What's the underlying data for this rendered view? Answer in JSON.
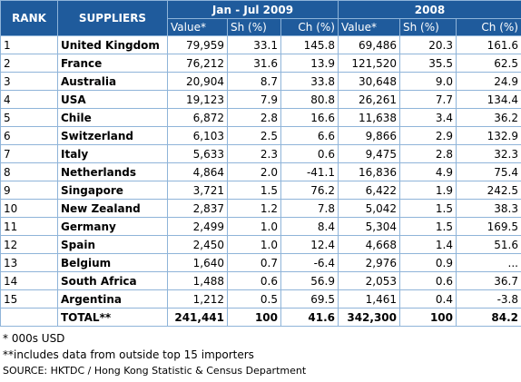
{
  "header": {
    "rank": "RANK",
    "suppliers": "SUPPLIERS",
    "period1": "Jan - Jul 2009",
    "period2": "2008",
    "value": "Value*",
    "share": "Sh (%)",
    "change": "Ch (%)"
  },
  "rows": [
    {
      "rank": "1",
      "name": "United Kingdom",
      "v1": "79,959",
      "s1": "33.1",
      "c1": "145.8",
      "v2": "69,486",
      "s2": "20.3",
      "c2": "161.6"
    },
    {
      "rank": "2",
      "name": "France",
      "v1": "76,212",
      "s1": "31.6",
      "c1": "13.9",
      "v2": "121,520",
      "s2": "35.5",
      "c2": "62.5"
    },
    {
      "rank": "3",
      "name": "Australia",
      "v1": "20,904",
      "s1": "8.7",
      "c1": "33.8",
      "v2": "30,648",
      "s2": "9.0",
      "c2": "24.9"
    },
    {
      "rank": "4",
      "name": "USA",
      "v1": "19,123",
      "s1": "7.9",
      "c1": "80.8",
      "v2": "26,261",
      "s2": "7.7",
      "c2": "134.4"
    },
    {
      "rank": "5",
      "name": "Chile",
      "v1": "6,872",
      "s1": "2.8",
      "c1": "16.6",
      "v2": "11,638",
      "s2": "3.4",
      "c2": "36.2"
    },
    {
      "rank": "6",
      "name": "Switzerland",
      "v1": "6,103",
      "s1": "2.5",
      "c1": "6.6",
      "v2": "9,866",
      "s2": "2.9",
      "c2": "132.9"
    },
    {
      "rank": "7",
      "name": "Italy",
      "v1": "5,633",
      "s1": "2.3",
      "c1": "0.6",
      "v2": "9,475",
      "s2": "2.8",
      "c2": "32.3"
    },
    {
      "rank": "8",
      "name": "Netherlands",
      "v1": "4,864",
      "s1": "2.0",
      "c1": "-41.1",
      "v2": "16,836",
      "s2": "4.9",
      "c2": "75.4"
    },
    {
      "rank": "9",
      "name": "Singapore",
      "v1": "3,721",
      "s1": "1.5",
      "c1": "76.2",
      "v2": "6,422",
      "s2": "1.9",
      "c2": "242.5"
    },
    {
      "rank": "10",
      "name": "New Zealand",
      "v1": "2,837",
      "s1": "1.2",
      "c1": "7.8",
      "v2": "5,042",
      "s2": "1.5",
      "c2": "38.3"
    },
    {
      "rank": "11",
      "name": "Germany",
      "v1": "2,499",
      "s1": "1.0",
      "c1": "8.4",
      "v2": "5,304",
      "s2": "1.5",
      "c2": "169.5"
    },
    {
      "rank": "12",
      "name": "Spain",
      "v1": "2,450",
      "s1": "1.0",
      "c1": "12.4",
      "v2": "4,668",
      "s2": "1.4",
      "c2": "51.6"
    },
    {
      "rank": "13",
      "name": "Belgium",
      "v1": "1,640",
      "s1": "0.7",
      "c1": "-6.4",
      "v2": "2,976",
      "s2": "0.9",
      "c2": "..."
    },
    {
      "rank": "14",
      "name": "South Africa",
      "v1": "1,488",
      "s1": "0.6",
      "c1": "56.9",
      "v2": "2,053",
      "s2": "0.6",
      "c2": "36.7"
    },
    {
      "rank": "15",
      "name": "Argentina",
      "v1": "1,212",
      "s1": "0.5",
      "c1": "69.5",
      "v2": "1,461",
      "s2": "0.4",
      "c2": "-3.8"
    }
  ],
  "total": {
    "label": "TOTAL**",
    "v1": "241,441",
    "s1": "100",
    "c1": "41.6",
    "v2": "342,300",
    "s2": "100",
    "c2": "84.2"
  },
  "notes": {
    "n1": "* 000s USD",
    "n2": "**includes data from outside top 15 importers",
    "source": "SOURCE: HKTDC / Hong Kong Statistic & Census Department"
  },
  "colors": {
    "header_bg": "#1f5b9c",
    "border": "#8fb4d9"
  }
}
